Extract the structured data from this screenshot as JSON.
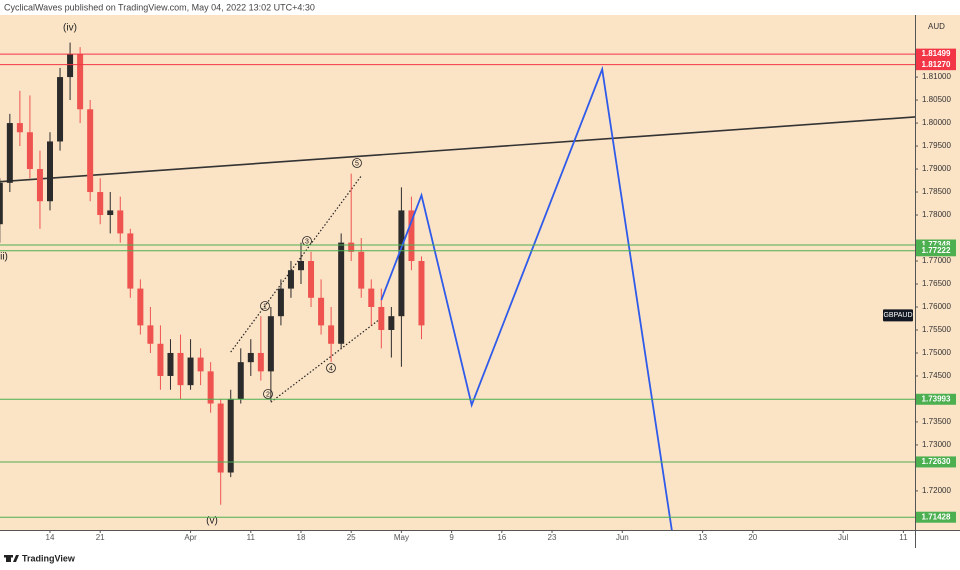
{
  "chart_data": {
    "type": "candlestick",
    "header": "CyclicalWaves published on TradingView.com, May 04, 2022 13:02 UTC+4:30",
    "brand": "TradingView",
    "currency": "AUD",
    "symbol": "GBPAUD",
    "up_color": "#2b2b2b",
    "down_color": "#ef5350",
    "grid": false,
    "x": [
      "2022-03-07",
      "2022-03-08",
      "2022-03-09",
      "2022-03-10",
      "2022-03-11",
      "2022-03-14",
      "2022-03-15",
      "2022-03-16",
      "2022-03-17",
      "2022-03-18",
      "2022-03-21",
      "2022-03-22",
      "2022-03-23",
      "2022-03-24",
      "2022-03-25",
      "2022-03-28",
      "2022-03-29",
      "2022-03-30",
      "2022-03-31",
      "2022-04-01",
      "2022-04-04",
      "2022-04-05",
      "2022-04-06",
      "2022-04-07",
      "2022-04-08",
      "2022-04-11",
      "2022-04-12",
      "2022-04-13",
      "2022-04-14",
      "2022-04-15",
      "2022-04-18",
      "2022-04-19",
      "2022-04-20",
      "2022-04-21",
      "2022-04-22",
      "2022-04-25",
      "2022-04-26",
      "2022-04-27",
      "2022-04-28",
      "2022-04-29",
      "2022-05-02",
      "2022-05-03",
      "2022-05-04"
    ],
    "open": [
      1.778,
      1.787,
      1.8,
      1.798,
      1.79,
      1.783,
      1.796,
      1.81,
      1.815,
      1.803,
      1.785,
      1.78,
      1.781,
      1.776,
      1.764,
      1.756,
      1.752,
      1.745,
      1.75,
      1.743,
      1.749,
      1.746,
      1.739,
      1.724,
      1.74,
      1.748,
      1.75,
      1.746,
      1.758,
      1.764,
      1.768,
      1.77,
      1.762,
      1.756,
      1.752,
      1.774,
      1.772,
      1.764,
      1.76,
      1.755,
      1.758,
      1.781,
      1.77
    ],
    "high": [
      1.788,
      1.802,
      1.807,
      1.806,
      1.794,
      1.798,
      1.812,
      1.8175,
      1.8165,
      1.805,
      1.788,
      1.785,
      1.784,
      1.777,
      1.766,
      1.76,
      1.756,
      1.753,
      1.754,
      1.753,
      1.751,
      1.748,
      1.74,
      1.742,
      1.751,
      1.753,
      1.758,
      1.76,
      1.766,
      1.77,
      1.774,
      1.772,
      1.766,
      1.76,
      1.776,
      1.789,
      1.775,
      1.766,
      1.764,
      1.76,
      1.786,
      1.784,
      1.771
    ],
    "low": [
      1.774,
      1.785,
      1.795,
      1.788,
      1.777,
      1.781,
      1.794,
      1.805,
      1.8,
      1.783,
      1.778,
      1.776,
      1.774,
      1.762,
      1.754,
      1.75,
      1.742,
      1.742,
      1.74,
      1.742,
      1.743,
      1.737,
      1.717,
      1.723,
      1.739,
      1.745,
      1.744,
      1.7395,
      1.756,
      1.762,
      1.765,
      1.76,
      1.754,
      1.748,
      1.751,
      1.77,
      1.762,
      1.756,
      1.751,
      1.749,
      1.747,
      1.768,
      1.753
    ],
    "close": [
      1.787,
      1.8,
      1.798,
      1.79,
      1.783,
      1.796,
      1.81,
      1.815,
      1.803,
      1.785,
      1.78,
      1.781,
      1.776,
      1.764,
      1.756,
      1.752,
      1.745,
      1.75,
      1.743,
      1.749,
      1.746,
      1.739,
      1.724,
      1.74,
      1.748,
      1.75,
      1.746,
      1.758,
      1.764,
      1.768,
      1.77,
      1.762,
      1.756,
      1.752,
      1.774,
      1.772,
      1.764,
      1.76,
      1.755,
      1.758,
      1.781,
      1.77,
      1.756
    ],
    "ylim": [
      1.7115,
      1.8235
    ],
    "yticks": [
      {
        "value": 1.72,
        "label": "1.72000"
      },
      {
        "value": 1.73,
        "label": "1.73000"
      },
      {
        "value": 1.735,
        "label": "1.73500"
      },
      {
        "value": 1.745,
        "label": "1.74500"
      },
      {
        "value": 1.75,
        "label": "1.75000"
      },
      {
        "value": 1.755,
        "label": "1.75500"
      },
      {
        "value": 1.76,
        "label": "1.76000"
      },
      {
        "value": 1.765,
        "label": "1.76500"
      },
      {
        "value": 1.77,
        "label": "1.77000"
      },
      {
        "value": 1.78,
        "label": "1.78000"
      },
      {
        "value": 1.785,
        "label": "1.78500"
      },
      {
        "value": 1.79,
        "label": "1.79000"
      },
      {
        "value": 1.795,
        "label": "1.79500"
      },
      {
        "value": 1.8,
        "label": "1.80000"
      },
      {
        "value": 1.805,
        "label": "1.80500"
      },
      {
        "value": 1.81,
        "label": "1.81000"
      }
    ],
    "xticks": [
      {
        "value": "2022-03-14",
        "label": "14"
      },
      {
        "value": "2022-03-21",
        "label": "21"
      },
      {
        "value": "2022-04-01",
        "label": "Apr"
      },
      {
        "value": "2022-04-11",
        "label": "11"
      },
      {
        "value": "2022-04-18",
        "label": "18"
      },
      {
        "value": "2022-04-25",
        "label": "25"
      },
      {
        "value": "2022-05-01",
        "label": "May"
      },
      {
        "value": "2022-05-09",
        "label": "9"
      },
      {
        "value": "2022-05-16",
        "label": "16"
      },
      {
        "value": "2022-05-23",
        "label": "23"
      },
      {
        "value": "2022-06-01",
        "label": "Jun"
      },
      {
        "value": "2022-06-13",
        "label": "13"
      },
      {
        "value": "2022-06-20",
        "label": "20"
      },
      {
        "value": "2022-07-01",
        "label": "Jul"
      },
      {
        "value": "2022-07-11",
        "label": "11"
      }
    ],
    "levels": [
      {
        "value": 1.81499,
        "color": "#f23645"
      },
      {
        "value": 1.8127,
        "label": "1.81270",
        "color": "#f23645"
      },
      {
        "value": 1.77348,
        "color": "#4caf50"
      },
      {
        "value": 1.77222,
        "color": "#4caf50"
      },
      {
        "value": 1.73993,
        "color": "#4caf50"
      },
      {
        "value": 1.7263,
        "label": "1.72630",
        "color": "#4caf50"
      },
      {
        "value": 1.71428,
        "color": "#4caf50"
      }
    ],
    "trendline": {
      "color": "#333333",
      "x": [
        "2022-03-08",
        "2022-07-12"
      ],
      "y": [
        1.7874,
        1.8013
      ]
    },
    "wedge": [
      {
        "color": "#222222",
        "x": [
          "2022-04-07",
          "2022-04-26"
        ],
        "y": [
          1.7502,
          1.7885
        ]
      },
      {
        "color": "#222222",
        "x": [
          "2022-04-13",
          "2022-04-28"
        ],
        "y": [
          1.7393,
          1.7576
        ]
      }
    ],
    "projection": {
      "color": "#2f5bea",
      "x": [
        "2022-04-28",
        "2022-05-04",
        "2022-05-11",
        "2022-05-30",
        "2022-06-08"
      ],
      "y": [
        1.7615,
        1.7843,
        1.7387,
        1.8117,
        1.7105
      ]
    },
    "wave_labels": [
      "(iv)",
      "(v)",
      "ii)"
    ],
    "wave_points": [
      "1",
      "2",
      "3",
      "4",
      "5"
    ]
  }
}
